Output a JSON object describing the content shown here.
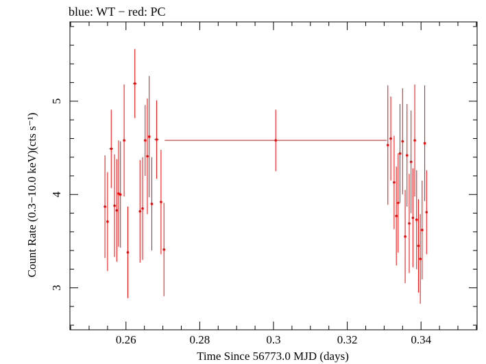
{
  "chart_data": {
    "type": "scatter",
    "title": "blue: WT − red: PC",
    "xlabel": "Time Since 56773.0 MJD (days)",
    "ylabel": "Count Rate (0.3−10.0 keV)(cts s⁻¹)",
    "xlim": [
      0.2448,
      0.3552
    ],
    "ylim": [
      2.55,
      5.85
    ],
    "xticks": [
      0.26,
      0.28,
      0.3,
      0.32,
      0.34
    ],
    "xtick_labels": [
      "0.26",
      "0.28",
      "0.3",
      "0.32",
      "0.34"
    ],
    "yticks": [
      3,
      4,
      5
    ],
    "ytick_labels": [
      "3",
      "4",
      "5"
    ],
    "grid": false,
    "legend": "none",
    "series": [
      {
        "color": "#ff0000",
        "points": [
          {
            "x": 0.2543,
            "y": 3.87,
            "xerr": 0.0003,
            "yerr": 0.55
          },
          {
            "x": 0.255,
            "y": 3.71,
            "xerr": 0.0003,
            "yerr": 0.53
          },
          {
            "x": 0.256,
            "y": 4.49,
            "xerr": 0.0005,
            "yerr": 0.42
          },
          {
            "x": 0.2569,
            "y": 3.88,
            "xerr": 0.0003,
            "yerr": 0.55
          },
          {
            "x": 0.2575,
            "y": 3.83,
            "xerr": 0.0003,
            "yerr": 0.55
          },
          {
            "x": 0.258,
            "y": 4.01,
            "xerr": 0.0003,
            "yerr": 0.57
          },
          {
            "x": 0.2585,
            "y": 4.0,
            "xerr": 0.0003,
            "yerr": 0.57
          },
          {
            "x": 0.2595,
            "y": 4.58,
            "xerr": 0.0003,
            "yerr": 0.6
          },
          {
            "x": 0.2605,
            "y": 3.38,
            "xerr": 0.0003,
            "yerr": 0.49
          },
          {
            "x": 0.2624,
            "y": 5.19,
            "xerr": 0.0005,
            "yerr": 0.37
          },
          {
            "x": 0.2638,
            "y": 3.82,
            "xerr": 0.0003,
            "yerr": 0.55
          },
          {
            "x": 0.2645,
            "y": 3.85,
            "xerr": 0.0003,
            "yerr": 0.55
          },
          {
            "x": 0.2652,
            "y": 4.58,
            "xerr": 0.0003,
            "yerr": 0.38
          },
          {
            "x": 0.2658,
            "y": 4.41,
            "xerr": 0.0003,
            "yerr": 0.62
          },
          {
            "x": 0.2663,
            "y": 4.62,
            "xerr": 0.0003,
            "yerr": 0.65
          },
          {
            "x": 0.267,
            "y": 3.9,
            "xerr": 0.0003,
            "yerr": 0.5
          },
          {
            "x": 0.2683,
            "y": 4.59,
            "xerr": 0.0006,
            "yerr": 0.42
          },
          {
            "x": 0.2695,
            "y": 3.92,
            "xerr": 0.0003,
            "yerr": 0.56
          },
          {
            "x": 0.2703,
            "y": 3.41,
            "xerr": 0.0003,
            "yerr": 0.5
          },
          {
            "x": 0.3006,
            "y": 4.58,
            "xerr": 0.0301,
            "yerr": 0.33
          },
          {
            "x": 0.331,
            "y": 4.53,
            "xerr": 0.0003,
            "yerr": 0.64
          },
          {
            "x": 0.3318,
            "y": 4.6,
            "xerr": 0.0003,
            "yerr": 0.45
          },
          {
            "x": 0.3327,
            "y": 4.13,
            "xerr": 0.0003,
            "yerr": 0.5
          },
          {
            "x": 0.3333,
            "y": 3.77,
            "xerr": 0.0003,
            "yerr": 0.53
          },
          {
            "x": 0.3338,
            "y": 3.91,
            "xerr": 0.0003,
            "yerr": 0.53
          },
          {
            "x": 0.3343,
            "y": 4.44,
            "xerr": 0.0003,
            "yerr": 0.53
          },
          {
            "x": 0.335,
            "y": 4.57,
            "xerr": 0.0003,
            "yerr": 0.57
          },
          {
            "x": 0.3357,
            "y": 3.55,
            "xerr": 0.0003,
            "yerr": 0.5
          },
          {
            "x": 0.3362,
            "y": 4.42,
            "xerr": 0.0003,
            "yerr": 0.55
          },
          {
            "x": 0.3368,
            "y": 3.69,
            "xerr": 0.0003,
            "yerr": 0.53
          },
          {
            "x": 0.3373,
            "y": 4.35,
            "xerr": 0.0003,
            "yerr": 0.55
          },
          {
            "x": 0.3378,
            "y": 3.75,
            "xerr": 0.0003,
            "yerr": 0.53
          },
          {
            "x": 0.3383,
            "y": 4.58,
            "xerr": 0.0003,
            "yerr": 0.6
          },
          {
            "x": 0.3388,
            "y": 3.73,
            "xerr": 0.0003,
            "yerr": 0.53
          },
          {
            "x": 0.3393,
            "y": 3.45,
            "xerr": 0.0003,
            "yerr": 0.5
          },
          {
            "x": 0.3398,
            "y": 3.31,
            "xerr": 0.0003,
            "yerr": 0.48
          },
          {
            "x": 0.3403,
            "y": 3.62,
            "xerr": 0.0003,
            "yerr": 0.53
          },
          {
            "x": 0.341,
            "y": 4.55,
            "xerr": 0.0003,
            "yerr": 0.62
          },
          {
            "x": 0.3415,
            "y": 3.81,
            "xerr": 0.0003,
            "yerr": 0.45
          }
        ]
      }
    ]
  }
}
